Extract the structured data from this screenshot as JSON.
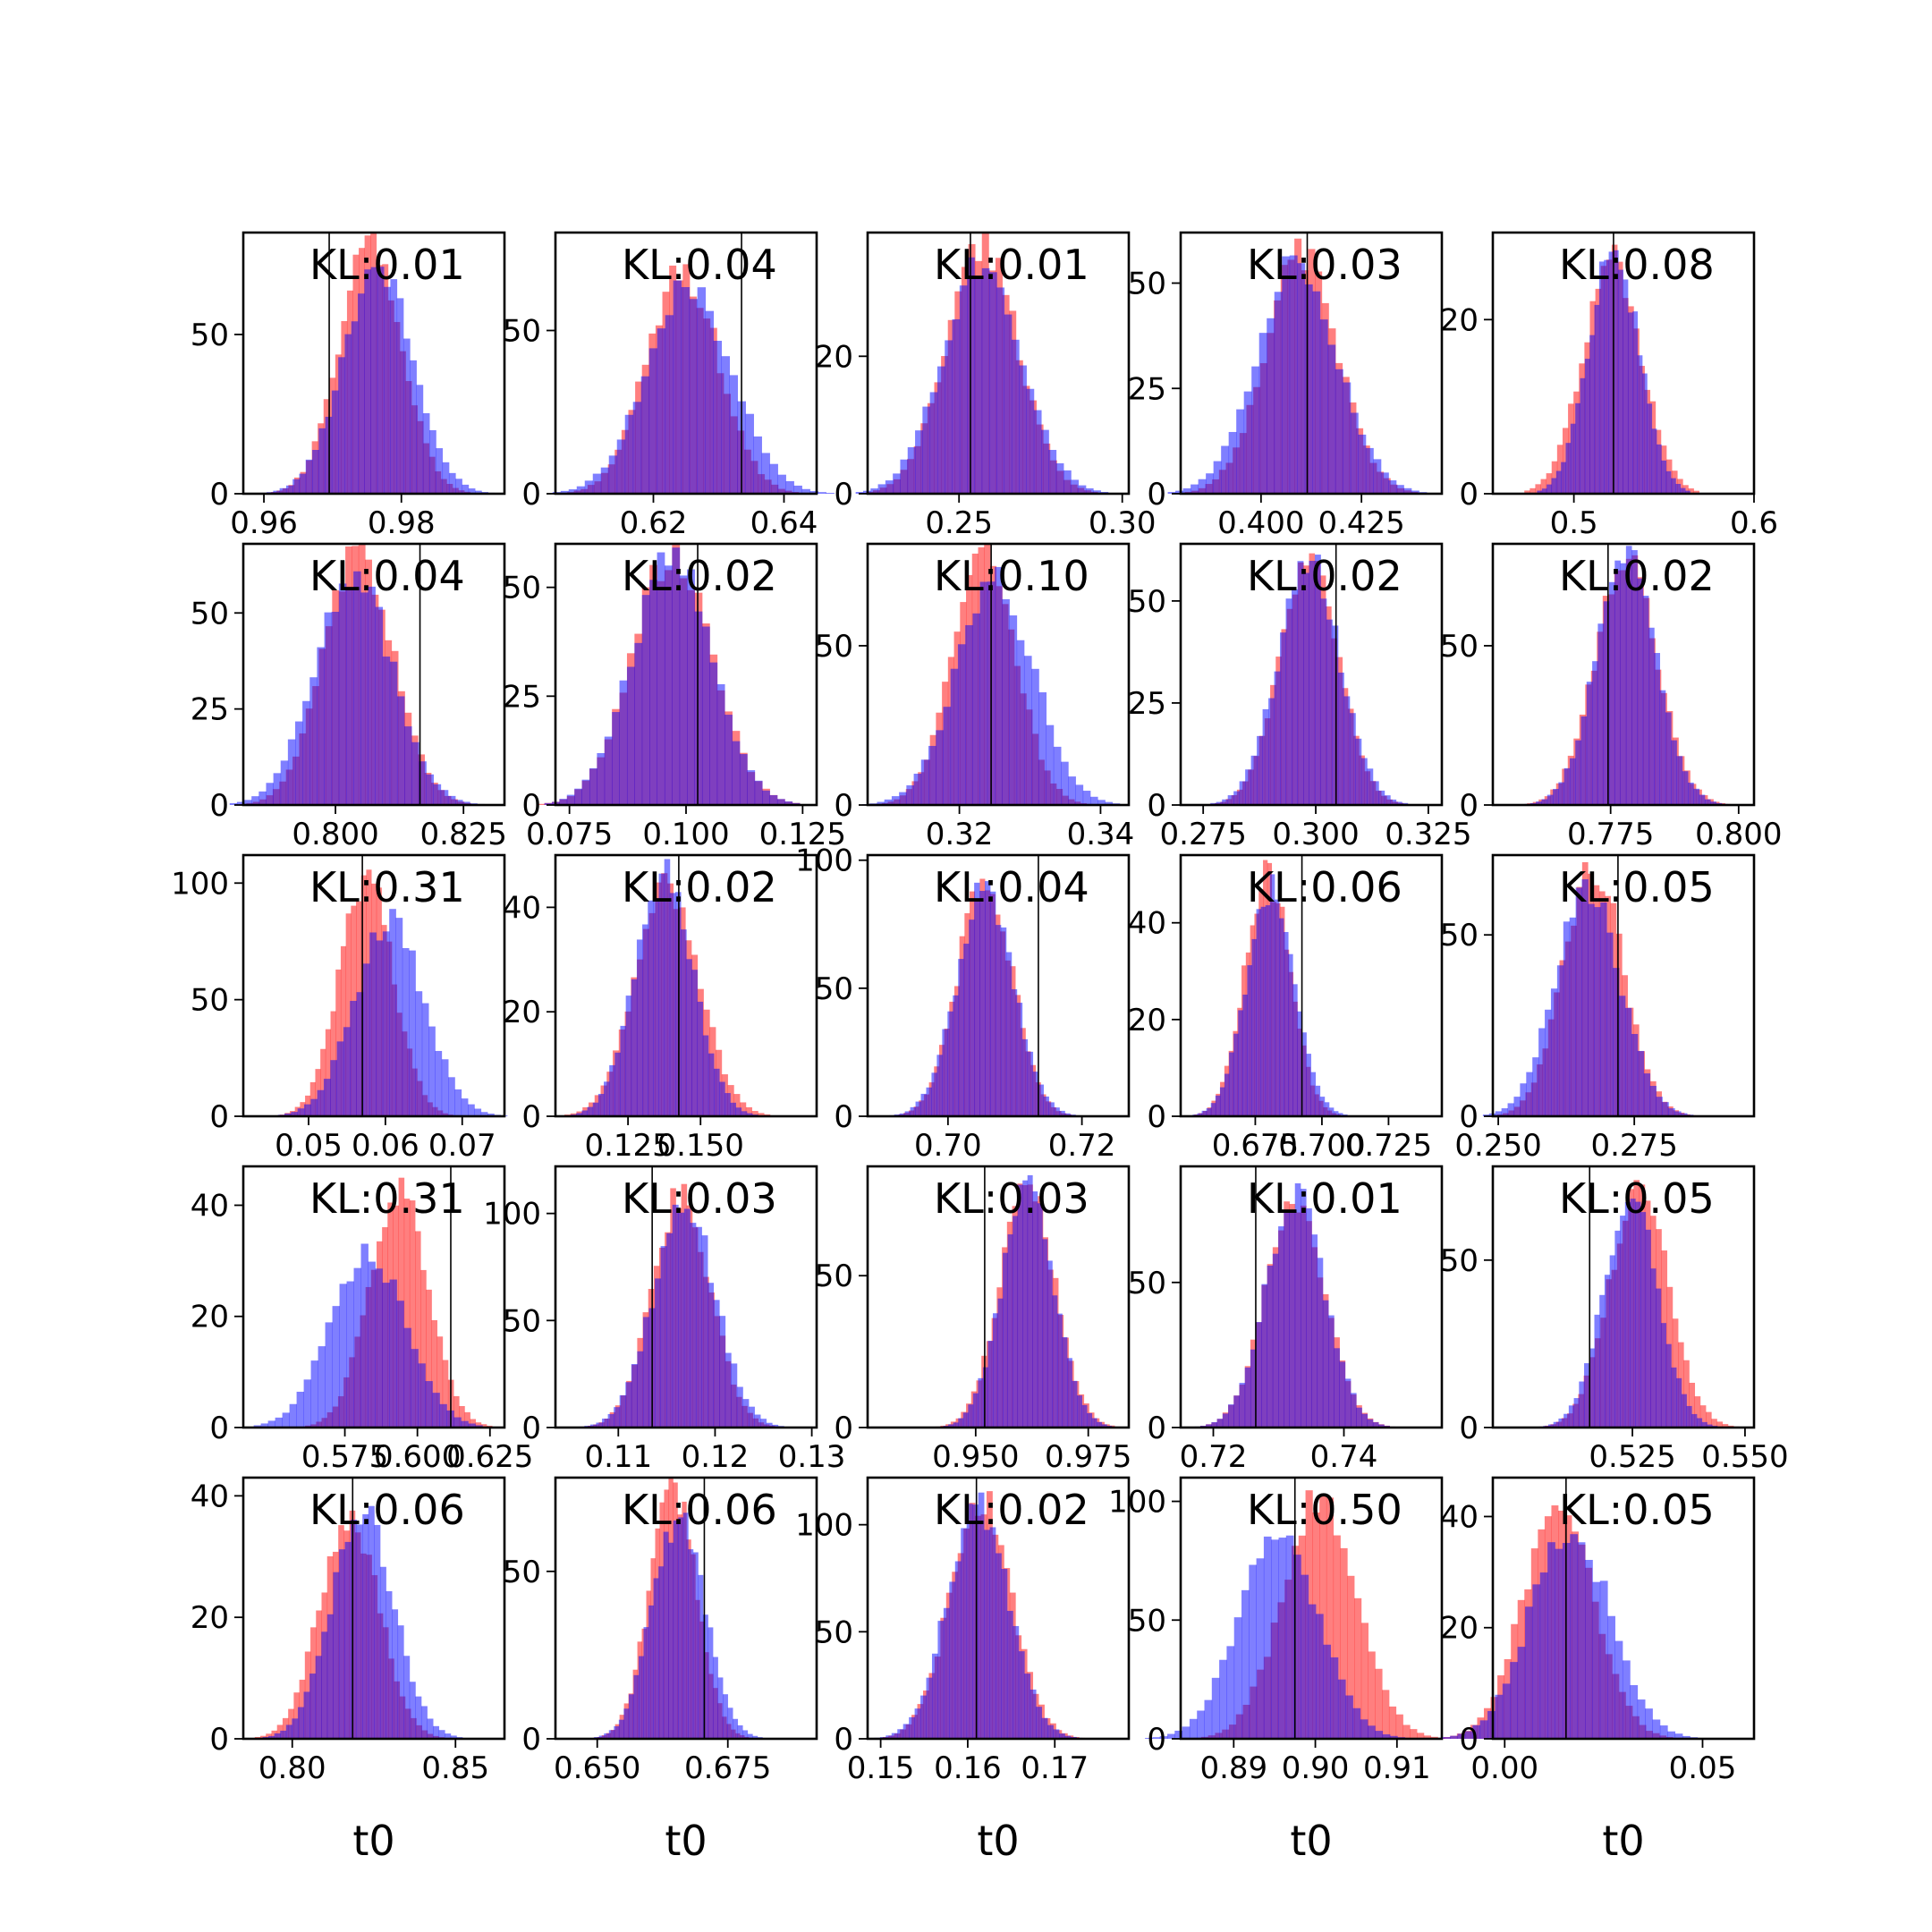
{
  "chart_data": {
    "type": "histogram-grid",
    "rows": 5,
    "cols": 5,
    "series_colors": [
      "#ff0000",
      "#0000ff"
    ],
    "overlap_color": "#7f3fbf",
    "alpha": 0.5,
    "xlabel": "t0",
    "panels": [
      {
        "kl": "KL:0.01",
        "xlim": [
          0.957,
          0.995
        ],
        "ylim": [
          0,
          82
        ],
        "xticks": [
          0.96,
          0.98
        ],
        "xticklabels": [
          "0.96",
          "0.98"
        ],
        "yticks": [
          0,
          50
        ],
        "yticklabels": [
          "0",
          "50"
        ],
        "truth": 0.9695,
        "dists": [
          {
            "mean": 0.9755,
            "sd": 0.0045,
            "peak": 78
          },
          {
            "mean": 0.9765,
            "sd": 0.005,
            "peak": 72
          }
        ]
      },
      {
        "kl": "KL:0.04",
        "xlim": [
          0.605,
          0.645
        ],
        "ylim": [
          0,
          80
        ],
        "xticks": [
          0.62,
          0.64
        ],
        "xticklabels": [
          "0.62",
          "0.64"
        ],
        "yticks": [
          0,
          50
        ],
        "yticklabels": [
          "0",
          "50"
        ],
        "truth": 0.6335,
        "dists": [
          {
            "mean": 0.6245,
            "sd": 0.0055,
            "peak": 68
          },
          {
            "mean": 0.6255,
            "sd": 0.0065,
            "peak": 63
          }
        ]
      },
      {
        "kl": "KL:0.01",
        "xlim": [
          0.222,
          0.302
        ],
        "ylim": [
          0,
          38
        ],
        "xticks": [
          0.25,
          0.3
        ],
        "xticklabels": [
          "0.25",
          "0.30"
        ],
        "yticks": [
          0,
          20
        ],
        "yticklabels": [
          "0",
          "20"
        ],
        "truth": 0.2535,
        "dists": [
          {
            "mean": 0.257,
            "sd": 0.011,
            "peak": 36
          },
          {
            "mean": 0.257,
            "sd": 0.012,
            "peak": 34
          }
        ]
      },
      {
        "kl": "KL:0.03",
        "xlim": [
          0.38,
          0.445
        ],
        "ylim": [
          0,
          62
        ],
        "xticks": [
          0.4,
          0.425
        ],
        "xticklabels": [
          "0.400",
          "0.425"
        ],
        "yticks": [
          0,
          25,
          50
        ],
        "yticklabels": [
          "0",
          "25",
          "50"
        ],
        "truth": 0.4115,
        "dists": [
          {
            "mean": 0.41,
            "sd": 0.009,
            "peak": 57
          },
          {
            "mean": 0.409,
            "sd": 0.01,
            "peak": 55
          }
        ]
      },
      {
        "kl": "KL:0.08",
        "xlim": [
          0.455,
          0.6
        ],
        "ylim": [
          0,
          30
        ],
        "xticks": [
          0.5,
          0.6
        ],
        "xticklabels": [
          "0.5",
          "0.6"
        ],
        "yticks": [
          0,
          20
        ],
        "yticklabels": [
          "0",
          "20"
        ],
        "truth": 0.522,
        "dists": [
          {
            "mean": 0.521,
            "sd": 0.016,
            "peak": 27
          },
          {
            "mean": 0.522,
            "sd": 0.014,
            "peak": 28
          }
        ]
      },
      {
        "kl": "KL:0.04",
        "xlim": [
          0.782,
          0.833
        ],
        "ylim": [
          0,
          68
        ],
        "xticks": [
          0.8,
          0.825
        ],
        "xticklabels": [
          "0.800",
          "0.825"
        ],
        "yticks": [
          0,
          25,
          50
        ],
        "yticklabels": [
          "0",
          "25",
          "50"
        ],
        "truth": 0.8165,
        "dists": [
          {
            "mean": 0.8045,
            "sd": 0.0068,
            "peak": 65
          },
          {
            "mean": 0.8035,
            "sd": 0.0075,
            "peak": 60
          }
        ]
      },
      {
        "kl": "KL:0.02",
        "xlim": [
          0.072,
          0.128
        ],
        "ylim": [
          0,
          60
        ],
        "xticks": [
          0.075,
          0.1,
          0.125
        ],
        "xticklabels": [
          "0.075",
          "0.100",
          "0.125"
        ],
        "yticks": [
          0,
          25,
          50
        ],
        "yticklabels": [
          "0",
          "25",
          "50"
        ],
        "truth": 0.1025,
        "dists": [
          {
            "mean": 0.097,
            "sd": 0.0085,
            "peak": 58
          },
          {
            "mean": 0.097,
            "sd": 0.0085,
            "peak": 58
          }
        ]
      },
      {
        "kl": "KL:0.10",
        "xlim": [
          0.307,
          0.344
        ],
        "ylim": [
          0,
          82
        ],
        "xticks": [
          0.32,
          0.34
        ],
        "xticklabels": [
          "0.32",
          "0.34"
        ],
        "yticks": [
          0,
          50
        ],
        "yticklabels": [
          "0",
          "50"
        ],
        "truth": 0.3245,
        "dists": [
          {
            "mean": 0.3235,
            "sd": 0.0045,
            "peak": 78
          },
          {
            "mean": 0.325,
            "sd": 0.0055,
            "peak": 70
          }
        ]
      },
      {
        "kl": "KL:0.02",
        "xlim": [
          0.27,
          0.328
        ],
        "ylim": [
          0,
          64
        ],
        "xticks": [
          0.275,
          0.3,
          0.325
        ],
        "xticklabels": [
          "0.275",
          "0.300",
          "0.325"
        ],
        "yticks": [
          0,
          25,
          50
        ],
        "yticklabels": [
          "0",
          "25",
          "50"
        ],
        "truth": 0.3045,
        "dists": [
          {
            "mean": 0.2985,
            "sd": 0.0065,
            "peak": 61
          },
          {
            "mean": 0.2985,
            "sd": 0.0068,
            "peak": 60
          }
        ]
      },
      {
        "kl": "KL:0.02",
        "xlim": [
          0.752,
          0.803
        ],
        "ylim": [
          0,
          82
        ],
        "xticks": [
          0.775,
          0.8
        ],
        "xticklabels": [
          "0.775",
          "0.800"
        ],
        "yticks": [
          0,
          50
        ],
        "yticklabels": [
          "0",
          "50"
        ],
        "truth": 0.7745,
        "dists": [
          {
            "mean": 0.778,
            "sd": 0.006,
            "peak": 77
          },
          {
            "mean": 0.778,
            "sd": 0.0058,
            "peak": 79
          }
        ]
      },
      {
        "kl": "KL:0.31",
        "xlim": [
          0.0415,
          0.0755
        ],
        "ylim": [
          0,
          112
        ],
        "xticks": [
          0.05,
          0.06,
          0.07
        ],
        "xticklabels": [
          "0.05",
          "0.06",
          "0.07"
        ],
        "yticks": [
          0,
          50,
          100
        ],
        "yticklabels": [
          "0",
          "50",
          "100"
        ],
        "truth": 0.057,
        "dists": [
          {
            "mean": 0.0575,
            "sd": 0.0035,
            "peak": 103
          },
          {
            "mean": 0.0605,
            "sd": 0.0045,
            "peak": 83
          }
        ]
      },
      {
        "kl": "KL:0.02",
        "xlim": [
          0.1,
          0.19
        ],
        "ylim": [
          0,
          50
        ],
        "xticks": [
          0.125,
          0.15
        ],
        "xticklabels": [
          "0.125",
          "0.150"
        ],
        "yticks": [
          0,
          20,
          40
        ],
        "yticklabels": [
          "0",
          "20",
          "40"
        ],
        "truth": 0.1425,
        "dists": [
          {
            "mean": 0.1385,
            "sd": 0.011,
            "peak": 44
          },
          {
            "mean": 0.1375,
            "sd": 0.01,
            "peak": 46
          }
        ]
      },
      {
        "kl": "KL:0.04",
        "xlim": [
          0.688,
          0.727
        ],
        "ylim": [
          0,
          102
        ],
        "xticks": [
          0.7,
          0.72
        ],
        "xticklabels": [
          "0.70",
          "0.72"
        ],
        "yticks": [
          0,
          50,
          100
        ],
        "yticklabels": [
          "0",
          "50",
          "100"
        ],
        "truth": 0.7135,
        "dists": [
          {
            "mean": 0.7055,
            "sd": 0.004,
            "peak": 95
          },
          {
            "mean": 0.7055,
            "sd": 0.0042,
            "peak": 88
          }
        ]
      },
      {
        "kl": "KL:0.06",
        "xlim": [
          0.647,
          0.745
        ],
        "ylim": [
          0,
          54
        ],
        "xticks": [
          0.675,
          0.7,
          0.725
        ],
        "xticklabels": [
          "0.675",
          "0.700",
          "0.725"
        ],
        "yticks": [
          0,
          20,
          40
        ],
        "yticklabels": [
          "0",
          "20",
          "40"
        ],
        "truth": 0.6925,
        "dists": [
          {
            "mean": 0.6795,
            "sd": 0.0085,
            "peak": 50
          },
          {
            "mean": 0.6805,
            "sd": 0.009,
            "peak": 47
          }
        ]
      },
      {
        "kl": "KL:0.05",
        "xlim": [
          0.249,
          0.297
        ],
        "ylim": [
          0,
          72
        ],
        "xticks": [
          0.25,
          0.275
        ],
        "xticklabels": [
          "0.250",
          "0.275"
        ],
        "yticks": [
          0,
          50
        ],
        "yticklabels": [
          "0",
          "50"
        ],
        "truth": 0.272,
        "dists": [
          {
            "mean": 0.2675,
            "sd": 0.0055,
            "peak": 69
          },
          {
            "mean": 0.2665,
            "sd": 0.006,
            "peak": 62
          }
        ]
      },
      {
        "kl": "KL:0.31",
        "xlim": [
          0.54,
          0.63
        ],
        "ylim": [
          0,
          47
        ],
        "xticks": [
          0.575,
          0.6,
          0.625
        ],
        "xticklabels": [
          "0.575",
          "0.600",
          "0.625"
        ],
        "yticks": [
          0,
          20,
          40
        ],
        "yticklabels": [
          "0",
          "20",
          "40"
        ],
        "truth": 0.6115,
        "dists": [
          {
            "mean": 0.5935,
            "sd": 0.01,
            "peak": 43
          },
          {
            "mean": 0.583,
            "sd": 0.013,
            "peak": 31
          }
        ]
      },
      {
        "kl": "KL:0.03",
        "xlim": [
          0.1035,
          0.1305
        ],
        "ylim": [
          0,
          122
        ],
        "xticks": [
          0.11,
          0.12,
          0.13
        ],
        "xticklabels": [
          "0.11",
          "0.12",
          "0.13"
        ],
        "yticks": [
          0,
          50,
          100
        ],
        "yticklabels": [
          "0",
          "50",
          "100"
        ],
        "truth": 0.1135,
        "dists": [
          {
            "mean": 0.1165,
            "sd": 0.003,
            "peak": 110
          },
          {
            "mean": 0.1168,
            "sd": 0.0032,
            "peak": 104
          }
        ]
      },
      {
        "kl": "KL:0.03",
        "xlim": [
          0.926,
          0.984
        ],
        "ylim": [
          0,
          86
        ],
        "xticks": [
          0.95,
          0.975
        ],
        "xticklabels": [
          "0.950",
          "0.975"
        ],
        "yticks": [
          0,
          50
        ],
        "yticklabels": [
          "0",
          "50"
        ],
        "truth": 0.952,
        "dists": [
          {
            "mean": 0.9615,
            "sd": 0.006,
            "peak": 81
          },
          {
            "mean": 0.9615,
            "sd": 0.0058,
            "peak": 78
          }
        ]
      },
      {
        "kl": "KL:0.01",
        "xlim": [
          0.715,
          0.755
        ],
        "ylim": [
          0,
          90
        ],
        "xticks": [
          0.72,
          0.74
        ],
        "xticklabels": [
          "0.72",
          "0.74"
        ],
        "yticks": [
          0,
          50
        ],
        "yticklabels": [
          "0",
          "50"
        ],
        "truth": 0.7265,
        "dists": [
          {
            "mean": 0.7325,
            "sd": 0.0045,
            "peak": 80
          },
          {
            "mean": 0.7325,
            "sd": 0.0045,
            "peak": 80
          }
        ]
      },
      {
        "kl": "KL:0.05",
        "xlim": [
          0.494,
          0.552
        ],
        "ylim": [
          0,
          78
        ],
        "xticks": [
          0.525,
          0.55
        ],
        "xticklabels": [
          "0.525",
          "0.550"
        ],
        "yticks": [
          0,
          50
        ],
        "yticklabels": [
          "0",
          "50"
        ],
        "truth": 0.5155,
        "dists": [
          {
            "mean": 0.5265,
            "sd": 0.0065,
            "peak": 73
          },
          {
            "mean": 0.5245,
            "sd": 0.006,
            "peak": 69
          }
        ]
      },
      {
        "kl": "KL:0.06",
        "xlim": [
          0.785,
          0.865
        ],
        "ylim": [
          0,
          43
        ],
        "xticks": [
          0.8,
          0.85
        ],
        "xticklabels": [
          "0.80",
          "0.85"
        ],
        "yticks": [
          0,
          20,
          40
        ],
        "yticklabels": [
          "0",
          "20",
          "40"
        ],
        "truth": 0.8185,
        "dists": [
          {
            "mean": 0.8175,
            "sd": 0.009,
            "peak": 37
          },
          {
            "mean": 0.8215,
            "sd": 0.0095,
            "peak": 37
          }
        ]
      },
      {
        "kl": "KL:0.06",
        "xlim": [
          0.642,
          0.692
        ],
        "ylim": [
          0,
          78
        ],
        "xticks": [
          0.65,
          0.675
        ],
        "xticklabels": [
          "0.650",
          "0.675"
        ],
        "yticks": [
          0,
          50
        ],
        "yticklabels": [
          "0",
          "50"
        ],
        "truth": 0.6705,
        "dists": [
          {
            "mean": 0.6645,
            "sd": 0.0045,
            "peak": 74
          },
          {
            "mean": 0.6655,
            "sd": 0.005,
            "peak": 66
          }
        ]
      },
      {
        "kl": "KL:0.02",
        "xlim": [
          0.1485,
          0.1785
        ],
        "ylim": [
          0,
          122
        ],
        "xticks": [
          0.15,
          0.16,
          0.17
        ],
        "xticklabels": [
          "0.15",
          "0.16",
          "0.17"
        ],
        "yticks": [
          0,
          50,
          100
        ],
        "yticklabels": [
          "0",
          "50",
          "100"
        ],
        "truth": 0.161,
        "dists": [
          {
            "mean": 0.1615,
            "sd": 0.0035,
            "peak": 112
          },
          {
            "mean": 0.1612,
            "sd": 0.0035,
            "peak": 110
          }
        ]
      },
      {
        "kl": "KL:0.50",
        "xlim": [
          0.8835,
          0.9155
        ],
        "ylim": [
          0,
          110
        ],
        "xticks": [
          0.89,
          0.9,
          0.91
        ],
        "xticklabels": [
          "0.89",
          "0.90",
          "0.91"
        ],
        "yticks": [
          0,
          50,
          100
        ],
        "yticklabels": [
          "0",
          "50",
          "100"
        ],
        "truth": 0.8975,
        "dists": [
          {
            "mean": 0.9005,
            "sd": 0.0045,
            "peak": 103
          },
          {
            "mean": 0.8955,
            "sd": 0.0048,
            "peak": 88
          }
        ]
      },
      {
        "kl": "KL:0.05",
        "xlim": [
          -0.003,
          0.063
        ],
        "ylim": [
          0,
          47
        ],
        "xticks": [
          0.0,
          0.05
        ],
        "xticklabels": [
          "0.00",
          "0.05"
        ],
        "yticks": [
          0,
          20,
          40
        ],
        "yticklabels": [
          "0",
          "20",
          "40"
        ],
        "truth": 0.0155,
        "dists": [
          {
            "mean": 0.0135,
            "sd": 0.009,
            "peak": 41
          },
          {
            "mean": 0.0165,
            "sd": 0.01,
            "peak": 38
          }
        ]
      }
    ]
  }
}
